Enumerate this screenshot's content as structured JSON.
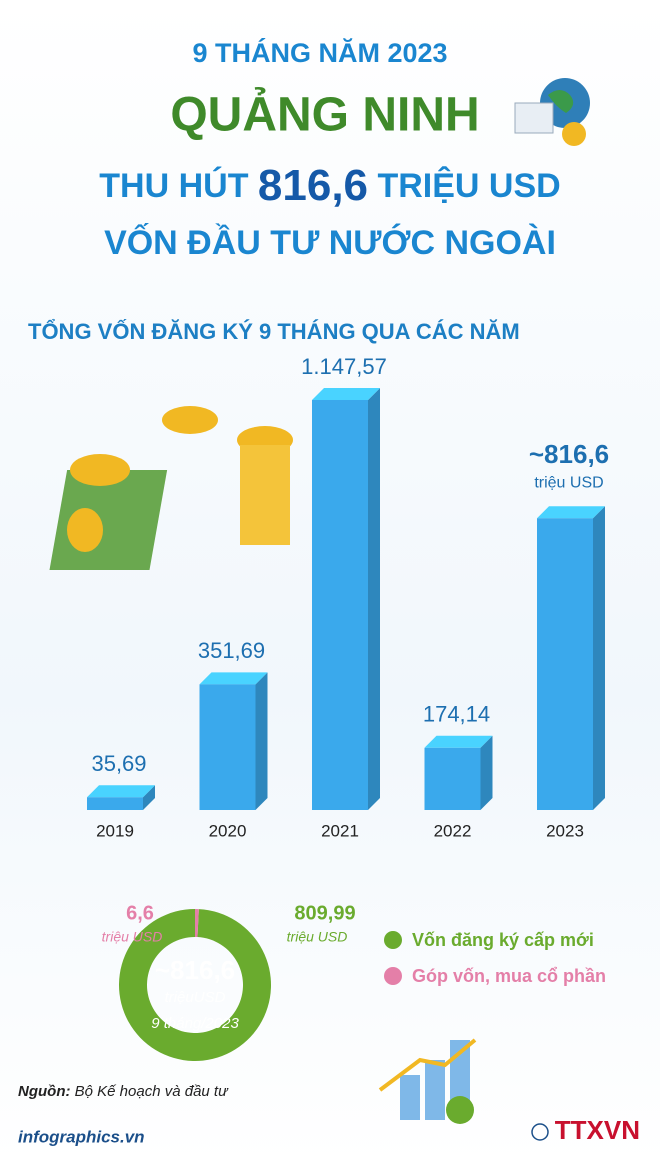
{
  "header": {
    "line1": "9 THÁNG NĂM 2023",
    "line2": "QUẢNG NINH",
    "line3a": "THU HÚT",
    "line3b": "816,6",
    "line3c": "TRIỆU USD",
    "line4": "VỐN ĐẦU TƯ NƯỚC NGOÀI"
  },
  "chart_data": [
    {
      "type": "bar",
      "title": "TỔNG VỐN ĐĂNG KÝ 9 THÁNG QUA CÁC NĂM",
      "categories": [
        "2019",
        "2020",
        "2021",
        "2022",
        "2023"
      ],
      "values": [
        35.69,
        351.69,
        1147.57,
        174.14,
        816.6
      ],
      "value_labels": [
        "35,69",
        "351,69",
        "1.147,57",
        "174,14",
        "~816,6"
      ],
      "unit_label": "triệu USD",
      "color": "#3aa9ec"
    },
    {
      "type": "donut",
      "categories": [
        "Vốn đăng ký cấp mới",
        "Góp vốn, mua cổ phần"
      ],
      "values": [
        809.99,
        6.6
      ],
      "value_labels": [
        "809,99",
        "6,6"
      ],
      "unit_labels": [
        "triệu USD",
        "triệu USD"
      ],
      "colors": [
        "#6aab2e",
        "#e47fa8"
      ],
      "center_labels": [
        "~816,6",
        "triệuUSD",
        "9 tháng/2023"
      ]
    }
  ],
  "footer": {
    "source_label": "Nguồn:",
    "source": "Bộ Kế hoạch và đầu tư",
    "site": "infographics.vn",
    "logo": "TTXVN"
  }
}
